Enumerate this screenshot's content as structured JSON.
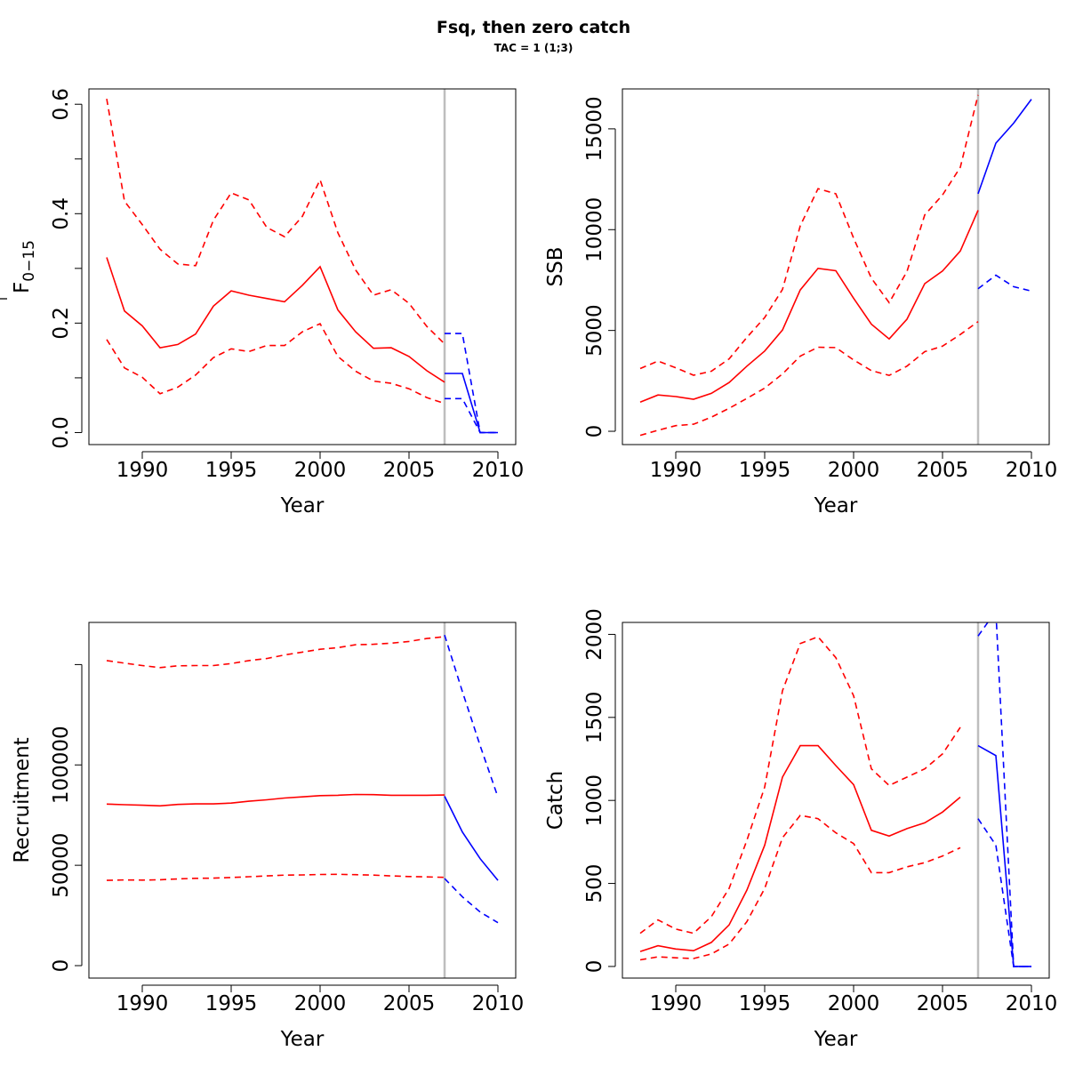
{
  "chart_data": {
    "title": "Fsq, then zero catch",
    "subtitle": "TAC = 1 (1;3)",
    "series_styles": {
      "historic_color": "#ff0000",
      "projection_color": "#0000ff",
      "divider_color": "#bebebe",
      "divider_year": 2007
    },
    "panels": [
      {
        "id": "F",
        "type": "line",
        "ylabel_main": "F",
        "ylabel_sub": "0−15",
        "xlabel": "Year",
        "xlim": [
          1987,
          2011
        ],
        "ylim": [
          -0.022,
          0.628
        ],
        "xticks": [
          1990,
          1995,
          2000,
          2005,
          2010
        ],
        "yticks": [
          0.0,
          0.1,
          0.2,
          0.3,
          0.4,
          0.5,
          0.6
        ],
        "ytick_labels": [
          "0.0",
          "",
          "0.2",
          "",
          "0.4",
          "",
          "0.6"
        ],
        "historic": {
          "years": [
            1988,
            1989,
            1990,
            1991,
            1992,
            1993,
            1994,
            1995,
            1996,
            1997,
            1998,
            1999,
            2000,
            2001,
            2002,
            2003,
            2004,
            2005,
            2006,
            2007
          ],
          "mid": [
            0.32,
            0.222,
            0.195,
            0.155,
            0.161,
            0.18,
            0.231,
            0.259,
            0.251,
            0.245,
            0.239,
            0.269,
            0.303,
            0.224,
            0.184,
            0.154,
            0.155,
            0.139,
            0.113,
            0.092
          ],
          "lower": [
            0.17,
            0.118,
            0.101,
            0.071,
            0.083,
            0.105,
            0.137,
            0.153,
            0.148,
            0.159,
            0.159,
            0.184,
            0.199,
            0.139,
            0.112,
            0.094,
            0.09,
            0.08,
            0.064,
            0.053
          ],
          "upper": [
            0.61,
            0.423,
            0.38,
            0.335,
            0.308,
            0.305,
            0.388,
            0.438,
            0.425,
            0.375,
            0.358,
            0.395,
            0.462,
            0.365,
            0.297,
            0.251,
            0.261,
            0.236,
            0.194,
            0.162
          ]
        },
        "projection": {
          "years": [
            2007,
            2008,
            2009,
            2010
          ],
          "mid": [
            0.108,
            0.108,
            0.0,
            0.0
          ],
          "lower": [
            0.062,
            0.062,
            0.0,
            0.0
          ],
          "upper": [
            0.181,
            0.181,
            0.0,
            0.0
          ]
        }
      },
      {
        "id": "SSB",
        "type": "line",
        "ylabel_main": "SSB",
        "ylabel_sub": "",
        "xlabel": "Year",
        "xlim": [
          1987,
          2011
        ],
        "ylim": [
          -660,
          16980
        ],
        "xticks": [
          1990,
          1995,
          2000,
          2005,
          2010
        ],
        "yticks": [
          0,
          5000,
          10000,
          15000
        ],
        "ytick_labels": [
          "0",
          "5000",
          "10000",
          "15000"
        ],
        "historic": {
          "years": [
            1988,
            1989,
            1990,
            1991,
            1992,
            1993,
            1994,
            1995,
            1996,
            1997,
            1998,
            1999,
            2000,
            2001,
            2002,
            2003,
            2004,
            2005,
            2006,
            2007
          ],
          "mid": [
            1450,
            1800,
            1720,
            1590,
            1880,
            2420,
            3230,
            3980,
            5020,
            7010,
            8080,
            7960,
            6600,
            5310,
            4580,
            5560,
            7320,
            7950,
            8940,
            10960
          ],
          "lower": [
            -200,
            50,
            280,
            350,
            700,
            1140,
            1630,
            2140,
            2840,
            3730,
            4170,
            4150,
            3540,
            3010,
            2770,
            3230,
            3950,
            4220,
            4800,
            5440
          ],
          "upper": [
            3110,
            3480,
            3150,
            2780,
            2980,
            3590,
            4660,
            5640,
            7030,
            10190,
            12030,
            11780,
            9580,
            7590,
            6380,
            7920,
            10730,
            11720,
            13090,
            16680
          ]
        },
        "projection": {
          "years": [
            2007,
            2008,
            2009,
            2010
          ],
          "mid": [
            11780,
            14290,
            15280,
            16470
          ],
          "lower": [
            7070,
            7740,
            7170,
            6950
          ],
          "upper": [
            null,
            null,
            null,
            null
          ]
        }
      },
      {
        "id": "Recruitment",
        "type": "line",
        "ylabel_main": "Recruitment",
        "ylabel_sub": "",
        "xlabel": "Year",
        "xlim": [
          1987,
          2011
        ],
        "ylim": [
          -6200,
          171000
        ],
        "xticks": [
          1990,
          1995,
          2000,
          2005,
          2010
        ],
        "yticks": [
          0,
          50000,
          100000,
          150000
        ],
        "ytick_labels": [
          "0",
          "50000",
          "100000",
          ""
        ],
        "historic": {
          "years": [
            1988,
            1989,
            1990,
            1991,
            1992,
            1993,
            1994,
            1995,
            1996,
            1997,
            1998,
            1999,
            2000,
            2001,
            2002,
            2003,
            2004,
            2005,
            2006,
            2007
          ],
          "mid": [
            80500,
            80200,
            79900,
            79600,
            80300,
            80600,
            80600,
            81000,
            81900,
            82600,
            83500,
            84100,
            84700,
            84900,
            85300,
            85200,
            84900,
            84900,
            84900,
            85000
          ],
          "lower": [
            42500,
            42700,
            42600,
            42800,
            43200,
            43500,
            43600,
            43900,
            44300,
            44700,
            45100,
            45200,
            45400,
            45500,
            45300,
            45100,
            44700,
            44400,
            44200,
            44000
          ],
          "upper": [
            152000,
            150700,
            149500,
            148500,
            149400,
            149500,
            149500,
            150500,
            152000,
            153000,
            154800,
            156200,
            157600,
            158400,
            159900,
            160100,
            160700,
            161500,
            163000,
            163900
          ]
        },
        "projection": {
          "years": [
            2007,
            2008,
            2009,
            2010
          ],
          "mid": [
            84400,
            66600,
            53300,
            42500
          ],
          "lower": [
            43400,
            34300,
            26700,
            21400
          ],
          "upper": [
            164700,
            136600,
            109600,
            84000
          ]
        }
      },
      {
        "id": "Catch",
        "type": "line",
        "ylabel_main": "Catch",
        "ylabel_sub": "",
        "xlabel": "Year",
        "xlim": [
          1987,
          2011
        ],
        "ylim": [
          -70,
          2072
        ],
        "xticks": [
          1990,
          1995,
          2000,
          2005,
          2010
        ],
        "yticks": [
          0,
          500,
          1000,
          1500,
          2000
        ],
        "ytick_labels": [
          "0",
          "500",
          "1000",
          "1500",
          "2000"
        ],
        "historic": {
          "years": [
            1988,
            1989,
            1990,
            1991,
            1992,
            1993,
            1994,
            1995,
            1996,
            1997,
            1998,
            1999,
            2000,
            2001,
            2002,
            2003,
            2004,
            2005,
            2006
          ],
          "mid": [
            90,
            125,
            105,
            95,
            145,
            250,
            460,
            730,
            1140,
            1330,
            1330,
            1210,
            1095,
            820,
            785,
            830,
            865,
            930,
            1020
          ],
          "lower": [
            40,
            58,
            52,
            48,
            75,
            135,
            270,
            470,
            775,
            910,
            890,
            805,
            740,
            565,
            565,
            600,
            625,
            665,
            715
          ],
          "upper": [
            200,
            280,
            225,
            200,
            300,
            470,
            760,
            1080,
            1660,
            1945,
            1985,
            1860,
            1630,
            1190,
            1090,
            1140,
            1190,
            1280,
            1440
          ]
        },
        "projection": {
          "years": [
            2007,
            2008,
            2009,
            2010
          ],
          "mid": [
            1330,
            1270,
            0,
            0
          ],
          "lower": [
            890,
            730,
            0,
            0
          ],
          "upper": [
            1990,
            2140,
            0,
            0
          ]
        }
      }
    ]
  }
}
